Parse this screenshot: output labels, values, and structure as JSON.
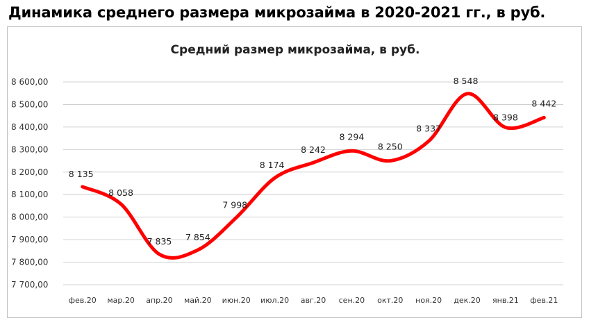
{
  "heading": "Динамика среднего размера микрозайма в 2020-2021 гг., в руб.",
  "chart_data": {
    "type": "line",
    "title": "Средний размер микрозайма, в руб.",
    "xlabel": "",
    "ylabel": "",
    "categories": [
      "фев.20",
      "мар.20",
      "апр.20",
      "май.20",
      "июн.20",
      "июл.20",
      "авг.20",
      "сен.20",
      "окт.20",
      "ноя.20",
      "дек.20",
      "янв.21",
      "фев.21"
    ],
    "series": [
      {
        "values": [
          8135,
          8058,
          7835,
          7854,
          7998,
          8174,
          8242,
          8294,
          8250,
          8337,
          8548,
          8398,
          8442
        ]
      }
    ],
    "data_labels": [
      "8 135",
      "8 058",
      "7 835",
      "7 854",
      "7 998",
      "8 174",
      "8 242",
      "8 294",
      "8 250",
      "8 337",
      "8 548",
      "8 398",
      "8 442"
    ],
    "ylim": [
      7700,
      8600
    ],
    "yticks": [
      7700,
      7800,
      7900,
      8000,
      8100,
      8200,
      8300,
      8400,
      8500,
      8600
    ],
    "ytick_labels": [
      "7 700,00",
      "7 800,00",
      "7 900,00",
      "8 000,00",
      "8 100,00",
      "8 200,00",
      "8 300,00",
      "8 400,00",
      "8 500,00",
      "8 600,00"
    ],
    "grid": true,
    "legend": "none",
    "line_color": "#ff0000",
    "smooth": true
  }
}
